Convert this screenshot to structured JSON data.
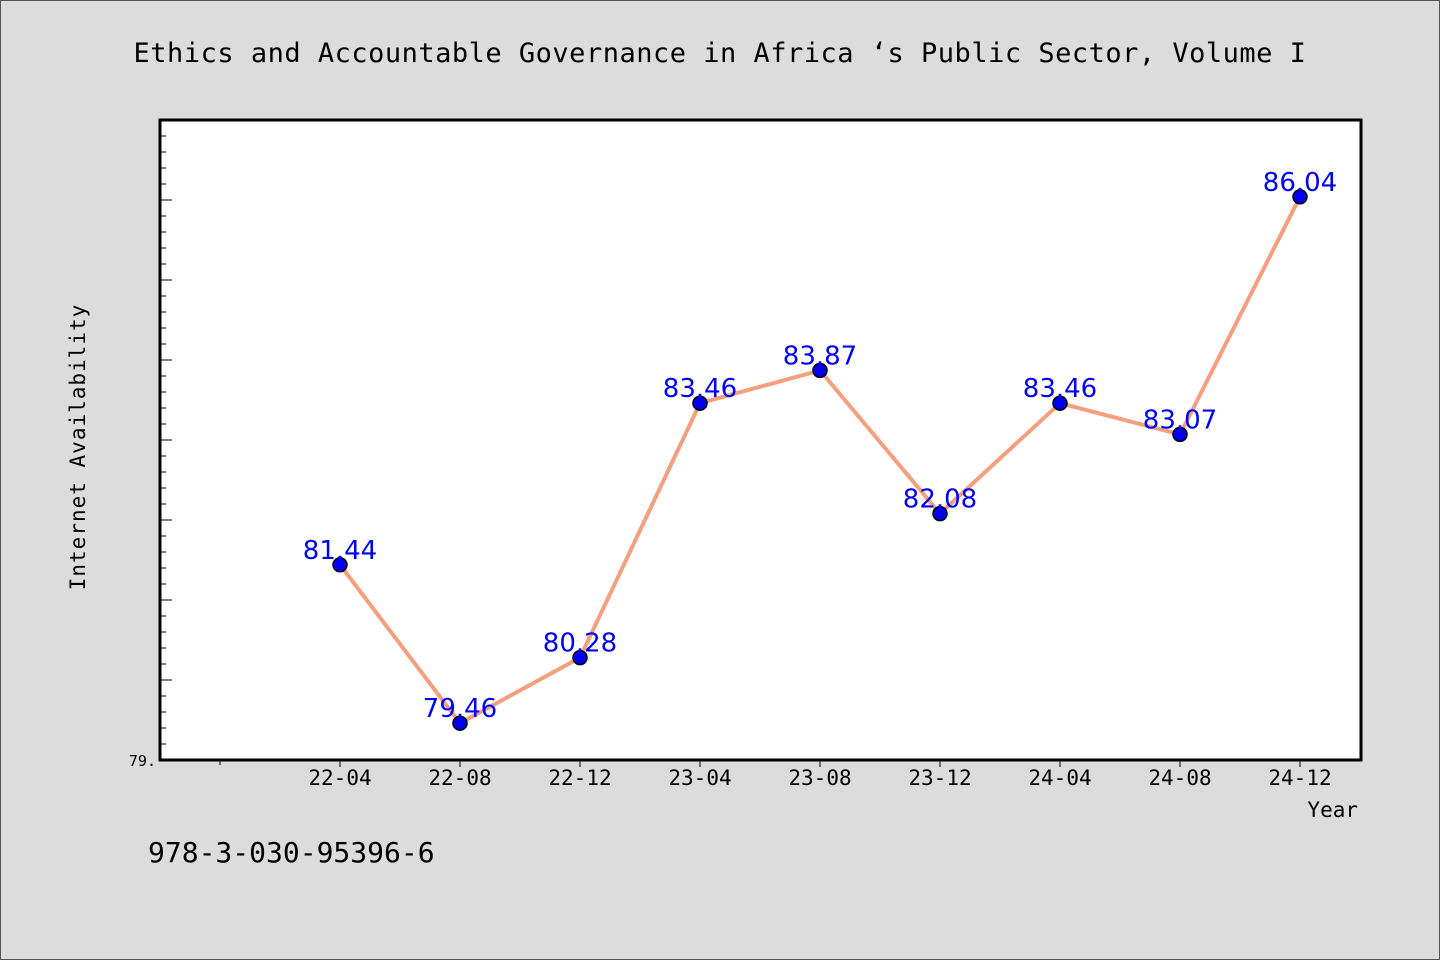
{
  "chart_data": {
    "type": "line",
    "title": "Ethics and Accountable Governance in Africa ‘s Public Sector, Volume I",
    "xlabel": "Year",
    "ylabel": "Internet Availability",
    "x": [
      "22-04",
      "22-08",
      "22-12",
      "23-04",
      "23-08",
      "23-12",
      "24-04",
      "24-08",
      "24-12"
    ],
    "series": [
      {
        "values": [
          81.44,
          79.46,
          80.28,
          83.46,
          83.87,
          82.08,
          83.46,
          83.07,
          86.04
        ],
        "data_labels": [
          "81.44",
          "79.46",
          "80.28",
          "83.46",
          "83.87",
          "82.08",
          "83.46",
          "83.07",
          "86.04"
        ]
      }
    ],
    "y_tick_labels": [
      "79."
    ],
    "ylim": [
      79.0,
      87.0
    ],
    "grid": false,
    "legend": "none",
    "colors": {
      "line": "#f4a07e",
      "marker": "#0000ee",
      "data_label": "#0000ff",
      "plot_background": "#ffffff",
      "page_background": "#dcdcdc"
    }
  },
  "footnote": "978-3-030-95396-6"
}
